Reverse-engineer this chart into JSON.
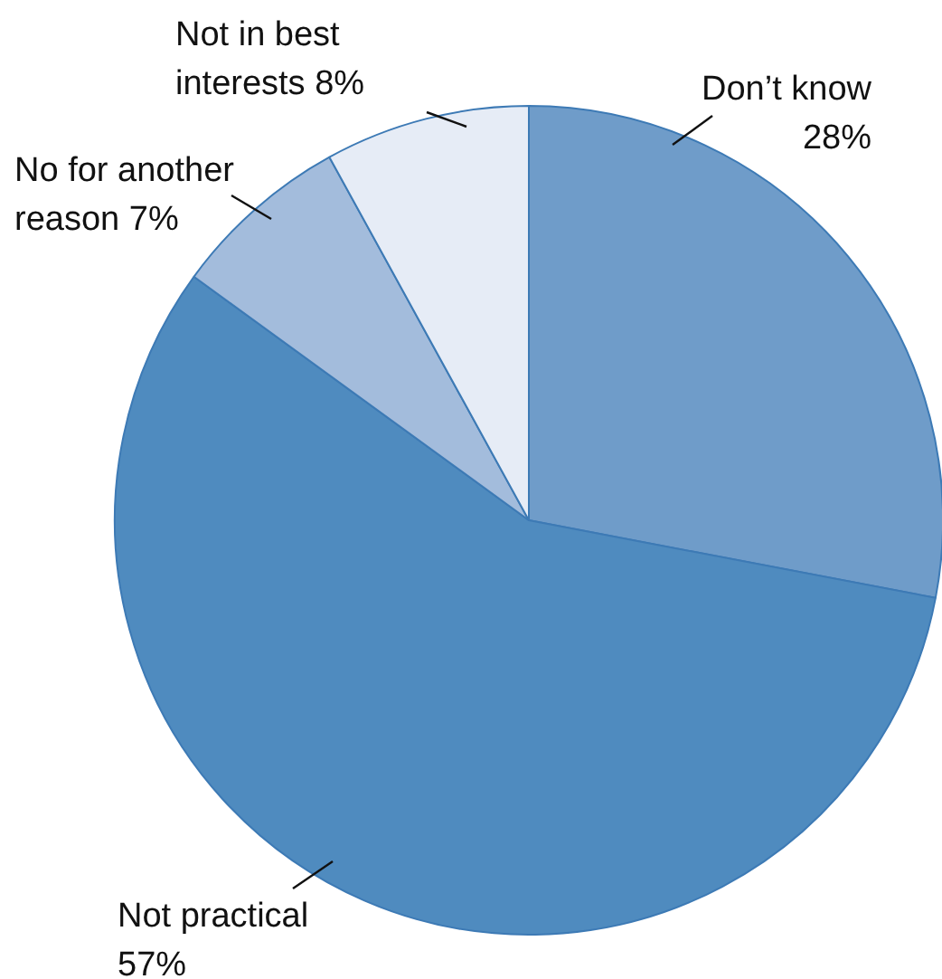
{
  "chart_data": {
    "type": "pie",
    "categories": [
      "Don’t know",
      "Not practical",
      "No for another reason",
      "Not in best interests"
    ],
    "values": [
      28,
      57,
      7,
      8
    ],
    "value_labels": [
      "28%",
      "57%",
      "7%",
      "8%"
    ],
    "colors": [
      "#6f9cc9",
      "#4f8bbf",
      "#a3bcdc",
      "#e6ecf6"
    ],
    "legend": false
  }
}
